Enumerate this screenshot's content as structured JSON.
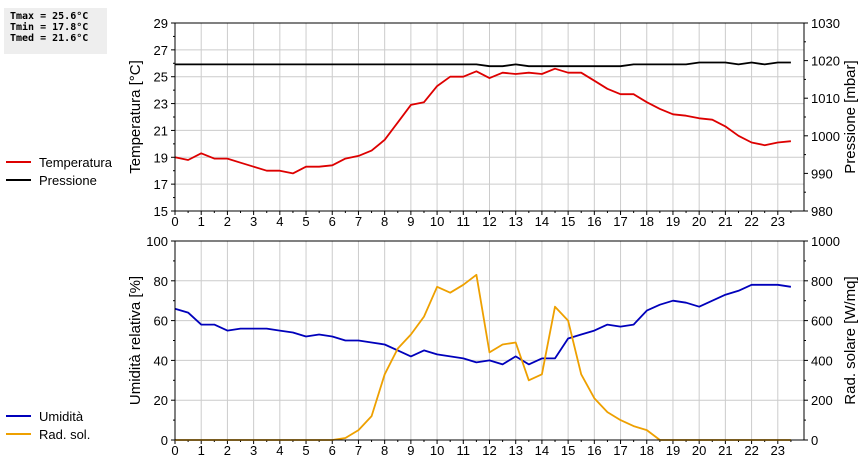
{
  "stats": {
    "tmax": "Tmax = 25.6°C",
    "tmin": "Tmin = 17.8°C",
    "tmed": "Tmed = 21.6°C"
  },
  "colors": {
    "temperatura": "#dd0000",
    "pressione": "#000000",
    "umidita": "#0000bb",
    "radsol": "#eea000",
    "grid": "#cccccc"
  },
  "chart_data": [
    {
      "type": "line",
      "x": [
        0,
        0.5,
        1,
        1.5,
        2,
        2.5,
        3,
        3.5,
        4,
        4.5,
        5,
        5.5,
        6,
        6.5,
        7,
        7.5,
        8,
        8.5,
        9,
        9.5,
        10,
        10.5,
        11,
        11.5,
        12,
        12.5,
        13,
        13.5,
        14,
        14.5,
        15,
        15.5,
        16,
        16.5,
        17,
        17.5,
        18,
        18.5,
        19,
        19.5,
        20,
        20.5,
        21,
        21.5,
        22,
        22.5,
        23,
        23.5
      ],
      "xticks": [
        "0",
        "1",
        "2",
        "3",
        "4",
        "5",
        "6",
        "7",
        "8",
        "9",
        "10",
        "11",
        "12",
        "13",
        "14",
        "15",
        "16",
        "17",
        "18",
        "19",
        "20",
        "21",
        "22",
        "23"
      ],
      "ylabel": "Temperatura [°C]",
      "ylim": [
        15,
        29
      ],
      "yticks": [
        "15",
        "17",
        "19",
        "21",
        "23",
        "25",
        "27",
        "29"
      ],
      "y2label": "Pressione [mbar]",
      "y2lim": [
        980,
        1030
      ],
      "y2ticks": [
        "980",
        "990",
        "1000",
        "1010",
        "1020",
        "1030"
      ],
      "grid": true,
      "series": [
        {
          "name": "Temperatura",
          "axis": "left",
          "values": [
            19.0,
            18.8,
            19.3,
            18.9,
            18.9,
            18.6,
            18.3,
            18.0,
            18.0,
            17.8,
            18.3,
            18.3,
            18.4,
            18.9,
            19.1,
            19.5,
            20.3,
            21.6,
            22.9,
            23.1,
            24.3,
            25.0,
            25.0,
            25.4,
            24.9,
            25.3,
            25.2,
            25.3,
            25.2,
            25.6,
            25.3,
            25.3,
            24.7,
            24.1,
            23.7,
            23.7,
            23.1,
            22.6,
            22.2,
            22.1,
            21.9,
            21.8,
            21.3,
            20.6,
            20.1,
            19.9,
            20.1,
            20.2
          ]
        },
        {
          "name": "Pressione",
          "axis": "right",
          "values": [
            1019,
            1019,
            1019,
            1019,
            1019,
            1019,
            1019,
            1019,
            1019,
            1019,
            1019,
            1019,
            1019,
            1019,
            1019,
            1019,
            1019,
            1019,
            1019,
            1019,
            1019,
            1019,
            1019,
            1019,
            1018.5,
            1018.5,
            1019,
            1018.5,
            1018.5,
            1018.5,
            1018.5,
            1018.5,
            1018.5,
            1018.5,
            1018.5,
            1019,
            1019,
            1019,
            1019,
            1019,
            1019.5,
            1019.5,
            1019.5,
            1019,
            1019.5,
            1019,
            1019.5,
            1019.5
          ]
        }
      ]
    },
    {
      "type": "line",
      "x": [
        0,
        0.5,
        1,
        1.5,
        2,
        2.5,
        3,
        3.5,
        4,
        4.5,
        5,
        5.5,
        6,
        6.5,
        7,
        7.5,
        8,
        8.5,
        9,
        9.5,
        10,
        10.5,
        11,
        11.5,
        12,
        12.5,
        13,
        13.5,
        14,
        14.5,
        15,
        15.5,
        16,
        16.5,
        17,
        17.5,
        18,
        18.5,
        19,
        19.5,
        20,
        20.5,
        21,
        21.5,
        22,
        22.5,
        23,
        23.5
      ],
      "xticks": [
        "0",
        "1",
        "2",
        "3",
        "4",
        "5",
        "6",
        "7",
        "8",
        "9",
        "10",
        "11",
        "12",
        "13",
        "14",
        "15",
        "16",
        "17",
        "18",
        "19",
        "20",
        "21",
        "22",
        "23"
      ],
      "ylabel": "Umidità relativa [%]",
      "ylim": [
        0,
        100
      ],
      "yticks": [
        "0",
        "20",
        "40",
        "60",
        "80",
        "100"
      ],
      "y2label": "Rad. solare [W/mq]",
      "y2lim": [
        0,
        1000
      ],
      "y2ticks": [
        "0",
        "200",
        "400",
        "600",
        "800",
        "1000"
      ],
      "grid": true,
      "series": [
        {
          "name": "Umidità",
          "axis": "left",
          "values": [
            66,
            64,
            58,
            58,
            55,
            56,
            56,
            56,
            55,
            54,
            52,
            53,
            52,
            50,
            50,
            49,
            48,
            45,
            42,
            45,
            43,
            42,
            41,
            39,
            40,
            38,
            42,
            38,
            41,
            41,
            51,
            53,
            55,
            58,
            57,
            58,
            65,
            68,
            70,
            69,
            67,
            70,
            73,
            75,
            78,
            78,
            78,
            77
          ]
        },
        {
          "name": "Rad. sol.",
          "axis": "right",
          "values": [
            0,
            0,
            0,
            0,
            0,
            0,
            0,
            0,
            0,
            0,
            0,
            0,
            0,
            10,
            50,
            120,
            330,
            460,
            530,
            620,
            770,
            740,
            780,
            830,
            440,
            480,
            490,
            300,
            330,
            670,
            600,
            330,
            210,
            140,
            100,
            70,
            50,
            0,
            0,
            0,
            0,
            0,
            0,
            0,
            0,
            0,
            0,
            0
          ]
        }
      ]
    }
  ]
}
